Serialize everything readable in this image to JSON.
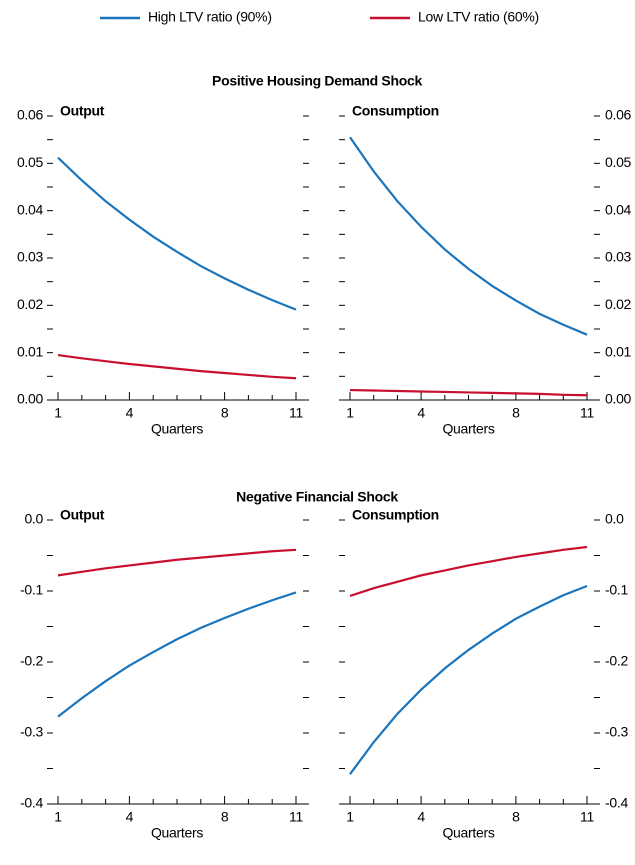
{
  "sections": [
    "Positive Housing Demand Shock",
    "Negative Financial Shock"
  ],
  "chart_data": [
    {
      "type": "line",
      "title": "Output",
      "xlabel": "Quarters",
      "ylabel_side": "left",
      "x": [
        1,
        2,
        3,
        4,
        5,
        6,
        7,
        8,
        9,
        10,
        11
      ],
      "xlim": [
        1,
        11
      ],
      "xticks": [
        1,
        4,
        8,
        11
      ],
      "xminor": [
        2,
        3,
        5,
        6,
        7,
        9,
        10
      ],
      "ylim": [
        0,
        0.06
      ],
      "yticks": [
        {
          "value": 0,
          "label": "0.00"
        },
        0.01,
        0.02,
        0.03,
        0.04,
        0.05,
        0.06
      ],
      "yminor": [
        0.005,
        0.015,
        0.025,
        0.035,
        0.045,
        0.055
      ],
      "series": [
        {
          "name": "High LTV ratio (90%)",
          "color": "#1a75bc",
          "values": [
            0.0512,
            0.0464,
            0.042,
            0.0381,
            0.0345,
            0.0313,
            0.0283,
            0.0257,
            0.0233,
            0.0211,
            0.0191
          ]
        },
        {
          "name": "Low LTV ratio (60%)",
          "color": "#c8102e",
          "values": [
            0.0095,
            0.0088,
            0.0082,
            0.0076,
            0.0071,
            0.0066,
            0.0061,
            0.0057,
            0.0053,
            0.0049,
            0.0046
          ]
        }
      ]
    },
    {
      "type": "line",
      "title": "Consumption",
      "xlabel": "Quarters",
      "ylabel_side": "right",
      "x": [
        1,
        2,
        3,
        4,
        5,
        6,
        7,
        8,
        9,
        10,
        11
      ],
      "xlim": [
        1,
        11
      ],
      "xticks": [
        1,
        4,
        8,
        11
      ],
      "xminor": [
        2,
        3,
        5,
        6,
        7,
        9,
        10
      ],
      "ylim": [
        0,
        0.06
      ],
      "yticks": [
        {
          "value": 0,
          "label": "0.00"
        },
        0.01,
        0.02,
        0.03,
        0.04,
        0.05,
        0.06
      ],
      "yminor": [
        0.005,
        0.015,
        0.025,
        0.035,
        0.045,
        0.055
      ],
      "series": [
        {
          "color": "#1a75bc",
          "values": [
            0.0555,
            0.0483,
            0.042,
            0.0366,
            0.0318,
            0.0277,
            0.0241,
            0.021,
            0.0182,
            0.0159,
            0.0138
          ]
        },
        {
          "color": "#c8102e",
          "values": [
            0.0021,
            0.002,
            0.0019,
            0.0018,
            0.0017,
            0.0016,
            0.0015,
            0.0014,
            0.0013,
            0.0011,
            0.001
          ]
        }
      ]
    },
    {
      "type": "line",
      "title": "Output",
      "xlabel": "Quarters",
      "ylabel_side": "left",
      "x": [
        1,
        2,
        3,
        4,
        5,
        6,
        7,
        8,
        9,
        10,
        11
      ],
      "xlim": [
        1,
        11
      ],
      "xticks": [
        1,
        4,
        8,
        11
      ],
      "xminor": [
        2,
        3,
        5,
        6,
        7,
        9,
        10
      ],
      "ylim": [
        -0.4,
        0
      ],
      "yticks": [
        -0.4,
        -0.3,
        -0.2,
        -0.1,
        {
          "value": 0,
          "label": "0.0"
        }
      ],
      "yminor": [
        -0.35,
        -0.25,
        -0.15,
        -0.05
      ],
      "series": [
        {
          "color": "#1a75bc",
          "values": [
            -0.277,
            -0.251,
            -0.227,
            -0.205,
            -0.186,
            -0.168,
            -0.152,
            -0.138,
            -0.125,
            -0.113,
            -0.102
          ]
        },
        {
          "color": "#c8102e",
          "values": [
            -0.078,
            -0.073,
            -0.068,
            -0.064,
            -0.06,
            -0.056,
            -0.053,
            -0.05,
            -0.047,
            -0.044,
            -0.042
          ]
        }
      ]
    },
    {
      "type": "line",
      "title": "Consumption",
      "xlabel": "Quarters",
      "ylabel_side": "right",
      "x": [
        1,
        2,
        3,
        4,
        5,
        6,
        7,
        8,
        9,
        10,
        11
      ],
      "xlim": [
        1,
        11
      ],
      "xticks": [
        1,
        4,
        8,
        11
      ],
      "xminor": [
        2,
        3,
        5,
        6,
        7,
        9,
        10
      ],
      "ylim": [
        -0.4,
        0
      ],
      "yticks": [
        -0.4,
        -0.3,
        -0.2,
        -0.1,
        {
          "value": 0,
          "label": "0.0"
        }
      ],
      "yminor": [
        -0.35,
        -0.25,
        -0.15,
        -0.05
      ],
      "series": [
        {
          "color": "#1a75bc",
          "values": [
            -0.358,
            -0.313,
            -0.273,
            -0.239,
            -0.209,
            -0.183,
            -0.16,
            -0.139,
            -0.122,
            -0.106,
            -0.093
          ]
        },
        {
          "color": "#c8102e",
          "values": [
            -0.107,
            -0.096,
            -0.087,
            -0.078,
            -0.071,
            -0.064,
            -0.058,
            -0.052,
            -0.047,
            -0.042,
            -0.038
          ]
        }
      ]
    }
  ]
}
